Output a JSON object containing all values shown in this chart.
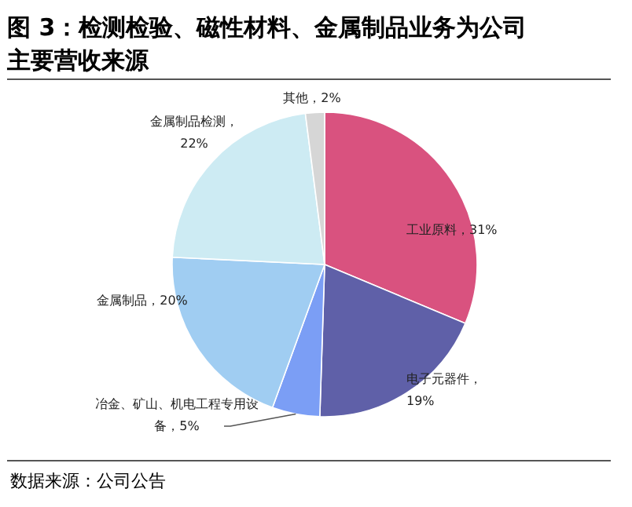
{
  "chart_data": {
    "type": "pie",
    "title": "图 3：检测检验、磁性材料、金属制品业务为公司主要营收来源",
    "categories": [
      "工业原料",
      "电子元器件",
      "冶金、矿山、机电工程专用设备",
      "金属制品",
      "金属制品检测",
      "其他"
    ],
    "values": [
      31,
      19,
      5,
      20,
      22,
      2
    ],
    "value_labels": [
      "，31%",
      "，19%",
      "，5%",
      "，20%",
      "，22%",
      "，2%"
    ],
    "colors": [
      "#d9527f",
      "#5f60a8",
      "#7b9ef5",
      "#a0cdf2",
      "#cdebf3",
      "#d6d6d6"
    ],
    "annotations": [
      "数据来源：公司公告"
    ]
  }
}
